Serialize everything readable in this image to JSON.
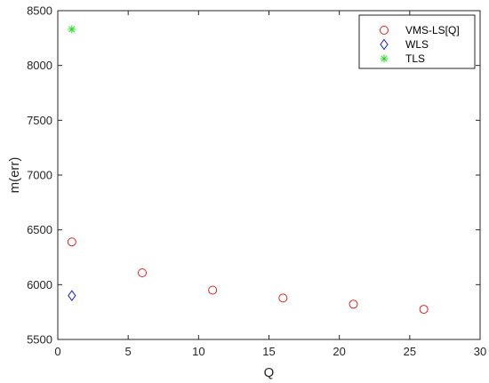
{
  "chart_data": {
    "type": "scatter",
    "xlabel": "Q",
    "ylabel": "m(err)",
    "xlim": [
      0,
      30
    ],
    "ylim": [
      5500,
      8500
    ],
    "xticks": [
      0,
      5,
      10,
      15,
      20,
      25,
      30
    ],
    "yticks": [
      5500,
      6000,
      6500,
      7000,
      7500,
      8000,
      8500
    ],
    "grid": false,
    "legend_position": "top-right",
    "series": [
      {
        "name": "VMS-LS[Q]",
        "marker": "circle",
        "color": "#e02020",
        "points": [
          {
            "x": 1,
            "y": 6390
          },
          {
            "x": 6,
            "y": 6108
          },
          {
            "x": 11,
            "y": 5950
          },
          {
            "x": 16,
            "y": 5878
          },
          {
            "x": 21,
            "y": 5822
          },
          {
            "x": 26,
            "y": 5775
          }
        ]
      },
      {
        "name": "WLS",
        "marker": "diamond",
        "color": "#1c1cc8",
        "points": [
          {
            "x": 1,
            "y": 5900
          }
        ]
      },
      {
        "name": "TLS",
        "marker": "asterisk",
        "color": "#22dd22",
        "points": [
          {
            "x": 1,
            "y": 8330
          }
        ]
      }
    ]
  }
}
